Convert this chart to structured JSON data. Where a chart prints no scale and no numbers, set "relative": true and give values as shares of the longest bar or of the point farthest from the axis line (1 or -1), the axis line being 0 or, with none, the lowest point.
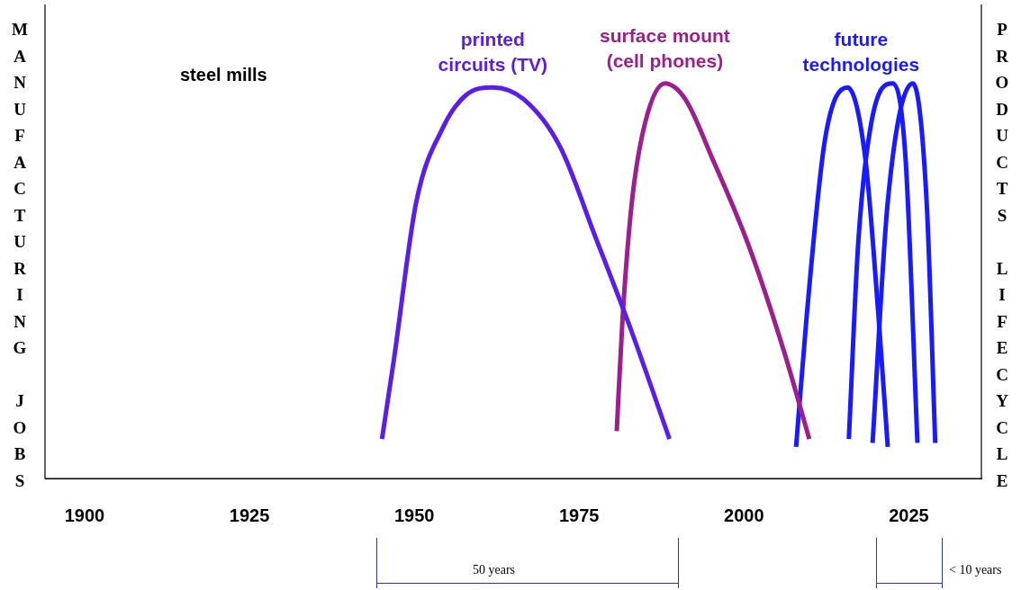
{
  "chart_data": {
    "type": "line",
    "relative": true,
    "ylabel": "MANUFACTURING JOBS",
    "y2label": "PRODUCTS LIFECYCLE",
    "xlim": [
      1894,
      2036
    ],
    "xticks": [
      1900,
      1925,
      1950,
      1975,
      2000,
      2025
    ],
    "grid": false,
    "legend": false,
    "marker": "none",
    "line_style": "solid",
    "annotations": [
      "steel mills",
      "50 years",
      "< 10 years"
    ],
    "series": [
      {
        "name": "printed circuits (TV)",
        "color": "#5a1ee6",
        "x": [
          1945.1,
          1946.9,
          1950.3,
          1954.4,
          1957.8,
          1961.9,
          1966.6,
          1972.1,
          1977.5,
          1983.0,
          1988.7
        ],
        "values": [
          0.1,
          0.3,
          0.7,
          0.89,
          0.97,
          0.99,
          0.96,
          0.84,
          0.61,
          0.37,
          0.1
        ]
      },
      {
        "name": "surface mount (cell phones)",
        "color": "#9b1f8c",
        "x": [
          1980.7,
          1981.6,
          1983.0,
          1985.0,
          1988.0,
          1991.1,
          1995.2,
          2000.7,
          2006.1,
          2009.9
        ],
        "values": [
          0.12,
          0.41,
          0.7,
          0.9,
          1.0,
          0.96,
          0.81,
          0.59,
          0.32,
          0.1
        ]
      },
      {
        "name": "future technologies",
        "color": "#1a1aff",
        "x": [
          2007.9,
          2009.5,
          2012.3,
          2015.7,
          2018.4,
          2020.4,
          2021.8
        ],
        "values": [
          0.08,
          0.41,
          0.86,
          0.99,
          0.81,
          0.41,
          0.08
        ]
      },
      {
        "color": "#1a1aff",
        "x": [
          2015.9,
          2017.3,
          2019.3,
          2022.5,
          2024.5,
          2026.3
        ],
        "values": [
          0.1,
          0.59,
          0.9,
          1.0,
          0.81,
          0.09
        ]
      },
      {
        "color": "#1a1aff",
        "x": [
          2019.5,
          2021.8,
          2025.6,
          2027.7,
          2029.0
        ],
        "values": [
          0.09,
          0.7,
          1.0,
          0.7,
          0.09
        ]
      }
    ]
  }
}
